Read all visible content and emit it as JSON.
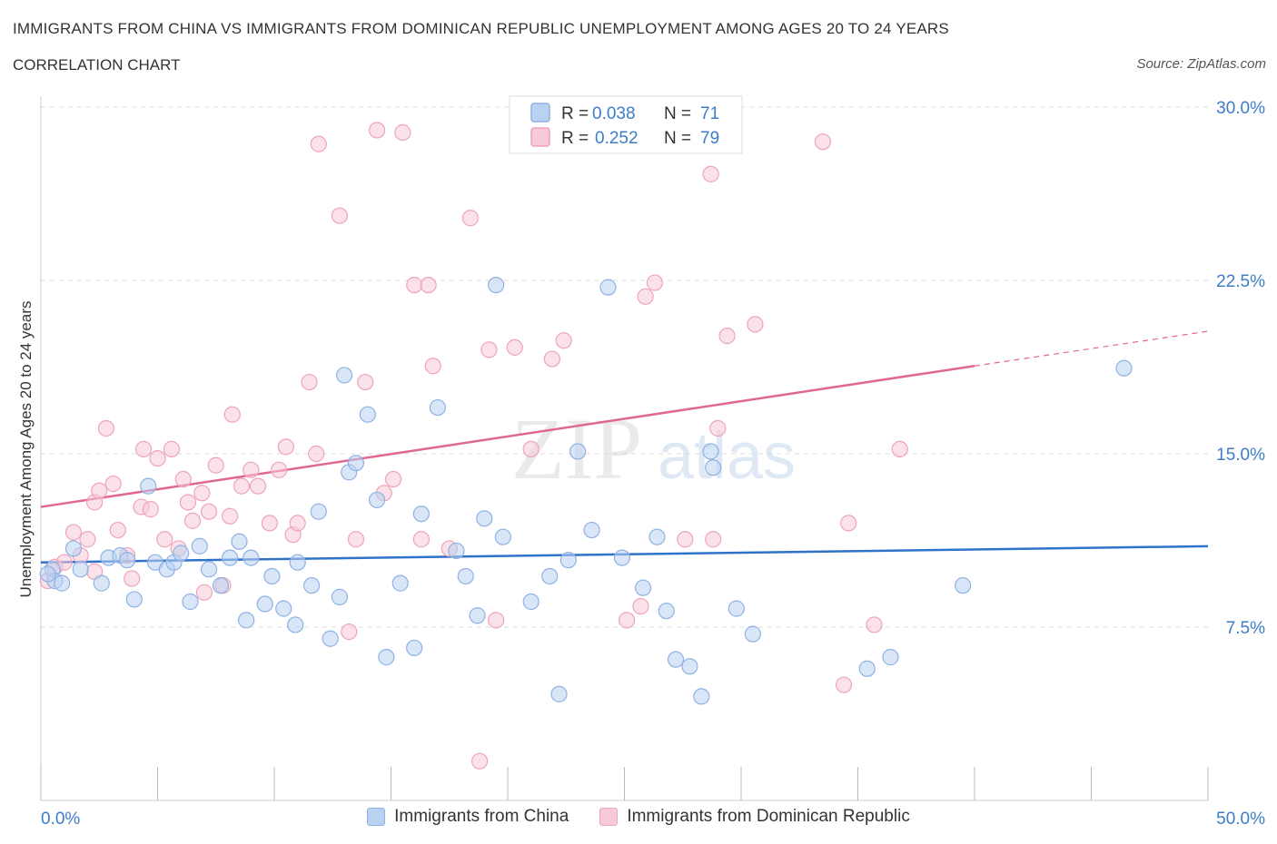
{
  "header": {
    "title": "IMMIGRANTS FROM CHINA VS IMMIGRANTS FROM DOMINICAN REPUBLIC UNEMPLOYMENT AMONG AGES 20 TO 24 YEARS",
    "subtitle": "CORRELATION CHART",
    "source": "Source: ZipAtlas.com"
  },
  "colors": {
    "china_fill": "#b9d2f2",
    "china_stroke": "#8fb2e3",
    "china_line": "#2f72c8",
    "dr_fill": "#f8c9d6",
    "dr_stroke": "#eea4ba",
    "dr_line": "#e0688f",
    "axis_label": "#3d7cc9"
  },
  "legend": {
    "china": {
      "r_label": "R =",
      "r_value": "0.038",
      "n_label": "N =",
      "n_value": "71"
    },
    "dr": {
      "r_label": "R =",
      "r_value": "0.252",
      "n_label": "N =",
      "n_value": "79"
    }
  },
  "bottom_legend": {
    "china": "Immigrants from China",
    "dr": "Immigrants from Dominican Republic"
  },
  "watermark": {
    "zip": "ZIP",
    "atlas": "atlas"
  },
  "chart_data": {
    "type": "scatter",
    "ylabel": "Unemployment Among Ages 20 to 24 years",
    "xlim": [
      0,
      50
    ],
    "ylim": [
      0,
      30
    ],
    "x_tick_labels": [
      {
        "value": 0,
        "label": "0.0%"
      },
      {
        "value": 50,
        "label": "50.0%"
      }
    ],
    "y_tick_labels": [
      {
        "value": 7.5,
        "label": "7.5%"
      },
      {
        "value": 15,
        "label": "15.0%"
      },
      {
        "value": 22.5,
        "label": "22.5%"
      },
      {
        "value": 30,
        "label": "30.0%"
      }
    ],
    "grid": true,
    "legend_position": "top-center",
    "series": [
      {
        "name": "Immigrants from China",
        "trend": {
          "x0": 0,
          "y0": 10.3,
          "x1": 50,
          "y1": 11.0
        },
        "points": [
          [
            0.5,
            10.0
          ],
          [
            0.6,
            9.5
          ],
          [
            0.9,
            9.4
          ],
          [
            1.4,
            10.9
          ],
          [
            1.7,
            10.0
          ],
          [
            2.6,
            9.4
          ],
          [
            2.9,
            10.5
          ],
          [
            3.4,
            10.6
          ],
          [
            3.7,
            10.4
          ],
          [
            4.0,
            8.7
          ],
          [
            4.6,
            13.6
          ],
          [
            4.9,
            10.3
          ],
          [
            5.4,
            10.0
          ],
          [
            5.7,
            10.3
          ],
          [
            6.0,
            10.7
          ],
          [
            6.4,
            8.6
          ],
          [
            6.8,
            11.0
          ],
          [
            7.2,
            10.0
          ],
          [
            7.7,
            9.3
          ],
          [
            8.1,
            10.5
          ],
          [
            8.5,
            11.2
          ],
          [
            8.8,
            7.8
          ],
          [
            9.0,
            10.5
          ],
          [
            9.6,
            8.5
          ],
          [
            9.9,
            9.7
          ],
          [
            10.4,
            8.3
          ],
          [
            10.9,
            7.6
          ],
          [
            11.0,
            10.3
          ],
          [
            11.6,
            9.3
          ],
          [
            11.9,
            12.5
          ],
          [
            12.4,
            7.0
          ],
          [
            12.8,
            8.8
          ],
          [
            13.0,
            18.4
          ],
          [
            13.2,
            14.2
          ],
          [
            13.5,
            14.6
          ],
          [
            14.0,
            16.7
          ],
          [
            14.4,
            13.0
          ],
          [
            14.8,
            6.2
          ],
          [
            15.4,
            9.4
          ],
          [
            16.0,
            6.6
          ],
          [
            16.3,
            12.4
          ],
          [
            17.0,
            17.0
          ],
          [
            17.8,
            10.8
          ],
          [
            18.2,
            9.7
          ],
          [
            18.7,
            8.0
          ],
          [
            19.0,
            12.2
          ],
          [
            19.5,
            22.3
          ],
          [
            19.8,
            11.4
          ],
          [
            21.0,
            8.6
          ],
          [
            21.8,
            9.7
          ],
          [
            22.2,
            4.6
          ],
          [
            22.6,
            10.4
          ],
          [
            23.0,
            15.1
          ],
          [
            23.6,
            11.7
          ],
          [
            24.3,
            22.2
          ],
          [
            24.9,
            10.5
          ],
          [
            25.8,
            9.2
          ],
          [
            26.4,
            11.4
          ],
          [
            26.8,
            8.2
          ],
          [
            27.2,
            6.1
          ],
          [
            27.8,
            5.8
          ],
          [
            28.3,
            4.5
          ],
          [
            28.7,
            15.1
          ],
          [
            28.8,
            14.4
          ],
          [
            29.8,
            8.3
          ],
          [
            30.5,
            7.2
          ],
          [
            35.4,
            5.7
          ],
          [
            36.4,
            6.2
          ],
          [
            39.5,
            9.3
          ],
          [
            46.4,
            18.7
          ],
          [
            0.3,
            9.8
          ]
        ]
      },
      {
        "name": "Immigrants from Dominican Republic",
        "trend": {
          "x0": 0,
          "y0": 12.7,
          "x1": 40,
          "y1": 18.8,
          "dash_x1": 50,
          "dash_y1": 20.3
        },
        "points": [
          [
            0.3,
            9.5
          ],
          [
            0.6,
            10.1
          ],
          [
            1.0,
            10.3
          ],
          [
            1.4,
            11.6
          ],
          [
            1.7,
            10.6
          ],
          [
            2.0,
            11.3
          ],
          [
            2.3,
            12.9
          ],
          [
            2.5,
            13.4
          ],
          [
            2.8,
            16.1
          ],
          [
            3.1,
            13.7
          ],
          [
            3.3,
            11.7
          ],
          [
            3.7,
            10.6
          ],
          [
            3.9,
            9.6
          ],
          [
            4.3,
            12.7
          ],
          [
            4.4,
            15.2
          ],
          [
            4.7,
            12.6
          ],
          [
            5.0,
            14.8
          ],
          [
            5.3,
            11.3
          ],
          [
            5.6,
            15.2
          ],
          [
            5.9,
            10.9
          ],
          [
            6.1,
            13.9
          ],
          [
            6.3,
            12.9
          ],
          [
            6.5,
            12.1
          ],
          [
            6.9,
            13.3
          ],
          [
            7.2,
            12.5
          ],
          [
            7.5,
            14.5
          ],
          [
            7.8,
            9.3
          ],
          [
            8.1,
            12.3
          ],
          [
            8.2,
            16.7
          ],
          [
            8.6,
            13.6
          ],
          [
            9.0,
            14.3
          ],
          [
            9.3,
            13.6
          ],
          [
            9.8,
            12.0
          ],
          [
            10.2,
            14.3
          ],
          [
            10.5,
            15.3
          ],
          [
            10.8,
            11.5
          ],
          [
            11.0,
            12.0
          ],
          [
            11.5,
            18.1
          ],
          [
            11.8,
            15.0
          ],
          [
            11.9,
            28.4
          ],
          [
            12.8,
            25.3
          ],
          [
            13.2,
            7.3
          ],
          [
            13.5,
            11.3
          ],
          [
            13.9,
            18.1
          ],
          [
            14.4,
            29.0
          ],
          [
            14.7,
            13.3
          ],
          [
            15.1,
            13.9
          ],
          [
            15.5,
            28.9
          ],
          [
            16.0,
            22.3
          ],
          [
            16.3,
            11.3
          ],
          [
            16.6,
            22.3
          ],
          [
            16.8,
            18.8
          ],
          [
            17.5,
            10.9
          ],
          [
            18.4,
            25.2
          ],
          [
            18.8,
            1.7
          ],
          [
            19.2,
            19.5
          ],
          [
            19.5,
            7.8
          ],
          [
            20.3,
            19.6
          ],
          [
            21.0,
            15.2
          ],
          [
            21.9,
            19.1
          ],
          [
            22.4,
            19.9
          ],
          [
            22.8,
            28.5
          ],
          [
            25.1,
            7.8
          ],
          [
            25.7,
            8.4
          ],
          [
            25.9,
            21.8
          ],
          [
            26.3,
            22.4
          ],
          [
            27.6,
            11.3
          ],
          [
            28.7,
            27.1
          ],
          [
            28.8,
            11.3
          ],
          [
            29.0,
            16.1
          ],
          [
            29.4,
            20.1
          ],
          [
            30.6,
            20.6
          ],
          [
            33.5,
            28.5
          ],
          [
            34.4,
            5.0
          ],
          [
            34.6,
            12.0
          ],
          [
            35.7,
            7.6
          ],
          [
            36.8,
            15.2
          ],
          [
            2.3,
            9.9
          ],
          [
            7.0,
            9.0
          ]
        ]
      }
    ]
  }
}
